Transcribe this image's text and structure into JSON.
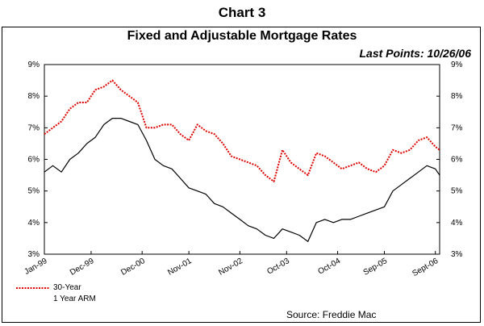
{
  "header": {
    "supertitle": "Chart 3",
    "last_points": "Last Points: 10/26/06",
    "source": "Source: Freddie Mac"
  },
  "colors": {
    "series_30yr": "#e00000",
    "series_arm": "#000000"
  },
  "chart_data": {
    "type": "line",
    "title": "Fixed and Adjustable Mortgage Rates",
    "xlabel": "",
    "ylabel": "",
    "ylim": [
      3,
      9
    ],
    "y_ticks": [
      "3%",
      "4%",
      "5%",
      "6%",
      "7%",
      "8%",
      "9%"
    ],
    "y_tick_values": [
      3,
      4,
      5,
      6,
      7,
      8,
      9
    ],
    "x_range": [
      "1999-01",
      "2006-10"
    ],
    "x_tick_labels": [
      "Jan-99",
      "Dec-99",
      "Dec-00",
      "Nov-01",
      "Nov-02",
      "Oct-03",
      "Oct-04",
      "Sep-05",
      "Sept-06"
    ],
    "x_tick_dates": [
      "1999-01",
      "1999-12",
      "2000-12",
      "2001-11",
      "2002-11",
      "2003-10",
      "2004-10",
      "2005-09",
      "2006-09"
    ],
    "grid": false,
    "legend_position": "bottom-left",
    "series": [
      {
        "name": "30-Year",
        "style": "dotted",
        "points": [
          [
            "1999-01",
            6.8
          ],
          [
            "1999-03",
            7.0
          ],
          [
            "1999-05",
            7.2
          ],
          [
            "1999-07",
            7.6
          ],
          [
            "1999-09",
            7.8
          ],
          [
            "1999-11",
            7.8
          ],
          [
            "2000-01",
            8.2
          ],
          [
            "2000-03",
            8.3
          ],
          [
            "2000-05",
            8.5
          ],
          [
            "2000-07",
            8.2
          ],
          [
            "2000-09",
            8.0
          ],
          [
            "2000-11",
            7.8
          ],
          [
            "2001-01",
            7.0
          ],
          [
            "2001-03",
            7.0
          ],
          [
            "2001-05",
            7.1
          ],
          [
            "2001-07",
            7.1
          ],
          [
            "2001-09",
            6.8
          ],
          [
            "2001-11",
            6.6
          ],
          [
            "2002-01",
            7.1
          ],
          [
            "2002-03",
            6.9
          ],
          [
            "2002-05",
            6.8
          ],
          [
            "2002-07",
            6.5
          ],
          [
            "2002-09",
            6.1
          ],
          [
            "2002-11",
            6.0
          ],
          [
            "2003-01",
            5.9
          ],
          [
            "2003-03",
            5.8
          ],
          [
            "2003-05",
            5.5
          ],
          [
            "2003-07",
            5.3
          ],
          [
            "2003-09",
            6.3
          ],
          [
            "2003-11",
            5.9
          ],
          [
            "2004-01",
            5.7
          ],
          [
            "2004-03",
            5.5
          ],
          [
            "2004-05",
            6.2
          ],
          [
            "2004-07",
            6.1
          ],
          [
            "2004-09",
            5.9
          ],
          [
            "2004-11",
            5.7
          ],
          [
            "2005-01",
            5.8
          ],
          [
            "2005-03",
            5.9
          ],
          [
            "2005-05",
            5.7
          ],
          [
            "2005-07",
            5.6
          ],
          [
            "2005-09",
            5.8
          ],
          [
            "2005-11",
            6.3
          ],
          [
            "2006-01",
            6.2
          ],
          [
            "2006-03",
            6.3
          ],
          [
            "2006-05",
            6.6
          ],
          [
            "2006-07",
            6.7
          ],
          [
            "2006-09",
            6.4
          ],
          [
            "2006-10",
            6.3
          ]
        ]
      },
      {
        "name": "1 Year ARM",
        "style": "solid",
        "points": [
          [
            "1999-01",
            5.6
          ],
          [
            "1999-03",
            5.8
          ],
          [
            "1999-05",
            5.6
          ],
          [
            "1999-07",
            6.0
          ],
          [
            "1999-09",
            6.2
          ],
          [
            "1999-11",
            6.5
          ],
          [
            "2000-01",
            6.7
          ],
          [
            "2000-03",
            7.1
          ],
          [
            "2000-05",
            7.3
          ],
          [
            "2000-07",
            7.3
          ],
          [
            "2000-09",
            7.2
          ],
          [
            "2000-11",
            7.1
          ],
          [
            "2001-01",
            6.6
          ],
          [
            "2001-03",
            6.0
          ],
          [
            "2001-05",
            5.8
          ],
          [
            "2001-07",
            5.7
          ],
          [
            "2001-09",
            5.4
          ],
          [
            "2001-11",
            5.1
          ],
          [
            "2002-01",
            5.0
          ],
          [
            "2002-03",
            4.9
          ],
          [
            "2002-05",
            4.6
          ],
          [
            "2002-07",
            4.5
          ],
          [
            "2002-09",
            4.3
          ],
          [
            "2002-11",
            4.1
          ],
          [
            "2003-01",
            3.9
          ],
          [
            "2003-03",
            3.8
          ],
          [
            "2003-05",
            3.6
          ],
          [
            "2003-07",
            3.5
          ],
          [
            "2003-09",
            3.8
          ],
          [
            "2003-11",
            3.7
          ],
          [
            "2004-01",
            3.6
          ],
          [
            "2004-03",
            3.4
          ],
          [
            "2004-05",
            4.0
          ],
          [
            "2004-07",
            4.1
          ],
          [
            "2004-09",
            4.0
          ],
          [
            "2004-11",
            4.1
          ],
          [
            "2005-01",
            4.1
          ],
          [
            "2005-03",
            4.2
          ],
          [
            "2005-05",
            4.3
          ],
          [
            "2005-07",
            4.4
          ],
          [
            "2005-09",
            4.5
          ],
          [
            "2005-11",
            5.0
          ],
          [
            "2006-01",
            5.2
          ],
          [
            "2006-03",
            5.4
          ],
          [
            "2006-05",
            5.6
          ],
          [
            "2006-07",
            5.8
          ],
          [
            "2006-09",
            5.7
          ],
          [
            "2006-10",
            5.5
          ]
        ]
      }
    ]
  }
}
